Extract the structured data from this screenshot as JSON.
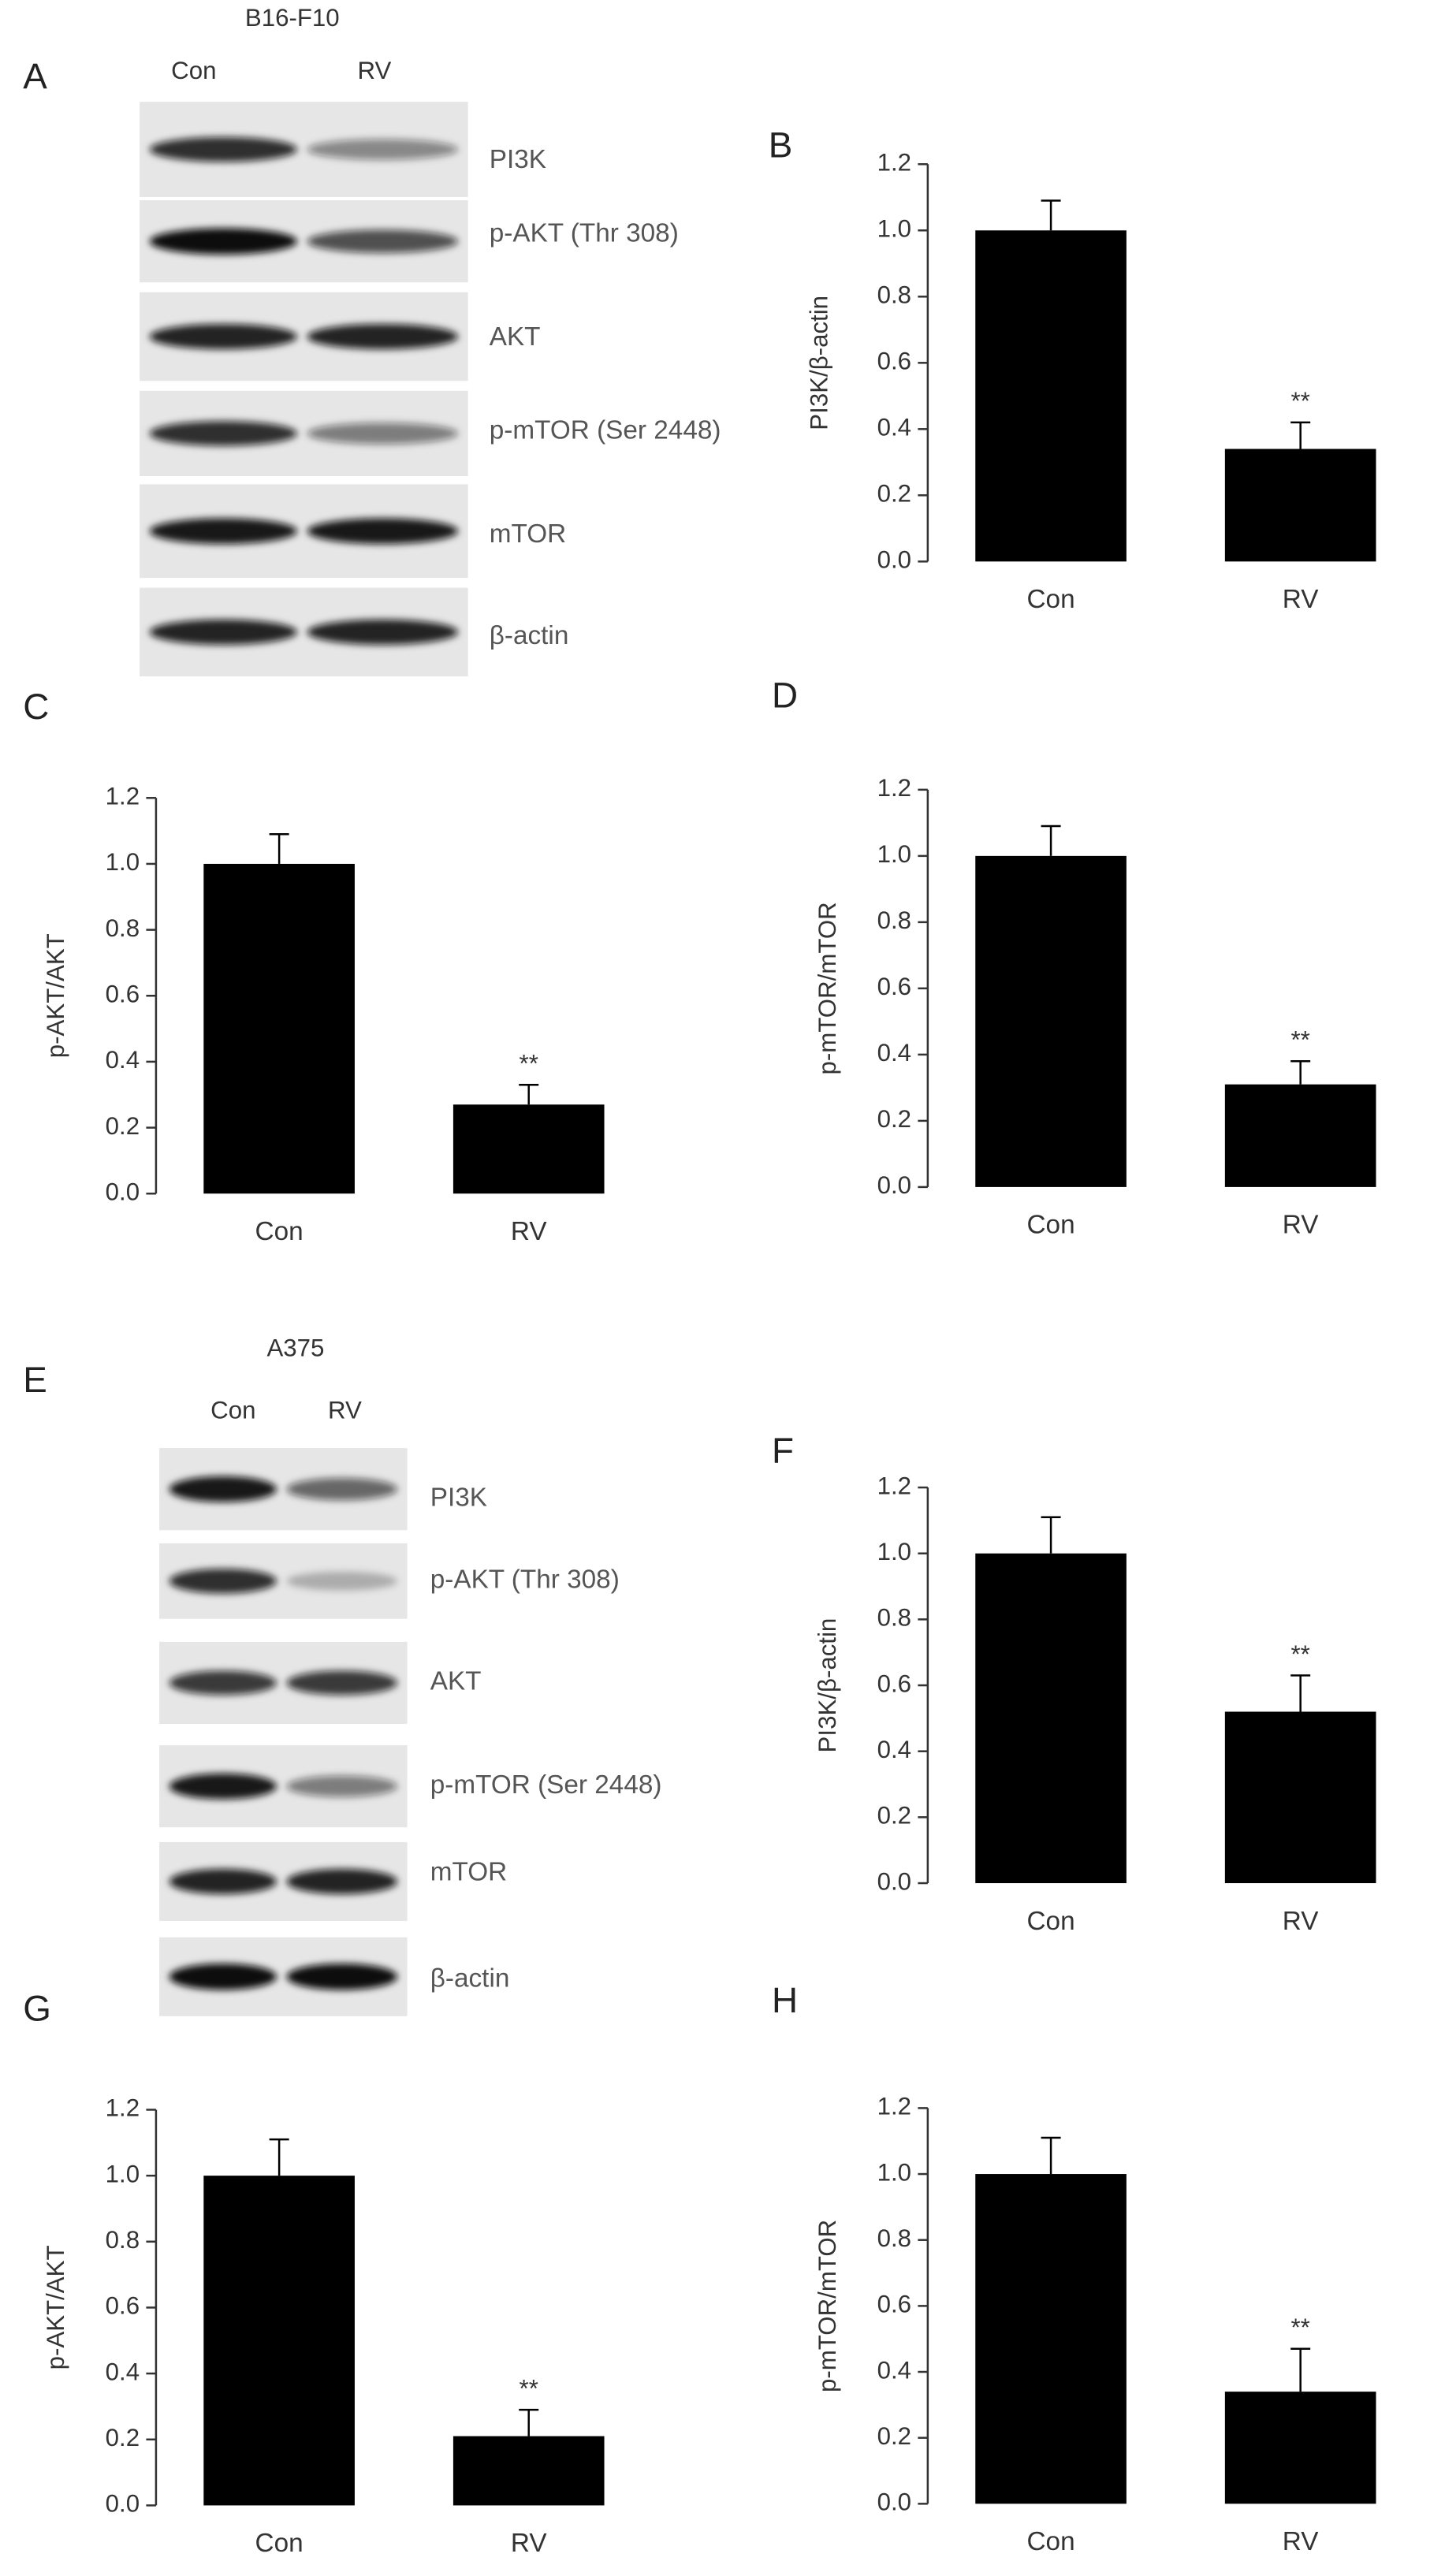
{
  "blots": [
    {
      "panel": "A",
      "cell_line": "B16-F10",
      "lanes": [
        "Con",
        "RV"
      ],
      "bands": [
        "PI3K",
        "p-AKT (Thr 308)",
        "AKT",
        "p-mTOR (Ser 2448)",
        "mTOR",
        "β-actin"
      ]
    },
    {
      "panel": "E",
      "cell_line": "A375",
      "lanes": [
        "Con",
        "RV"
      ],
      "bands": [
        "PI3K",
        "p-AKT (Thr 308)",
        "AKT",
        "p-mTOR (Ser 2448)",
        "mTOR",
        "β-actin"
      ]
    }
  ],
  "chart_data": [
    {
      "type": "bar",
      "panel": "B",
      "ylabel": "PI3K/β-actin",
      "categories": [
        "Con",
        "RV"
      ],
      "values": [
        1.0,
        0.34
      ],
      "errors": [
        0.09,
        0.08
      ],
      "color": "#000000",
      "ylim": [
        0,
        1.2
      ],
      "yticks": [
        {
          "value": 0,
          "label": "0.0"
        },
        0.2,
        0.4,
        0.6,
        0.8,
        {
          "value": 1,
          "label": "1.0"
        },
        1.2
      ],
      "annotations": [
        {
          "x": "RV",
          "text": "**"
        }
      ]
    },
    {
      "type": "bar",
      "panel": "C",
      "ylabel": "p-AKT/AKT",
      "categories": [
        "Con",
        "RV"
      ],
      "values": [
        1.0,
        0.27
      ],
      "errors": [
        0.09,
        0.06
      ],
      "color": "#000000",
      "ylim": [
        0,
        1.2
      ],
      "yticks": [
        {
          "value": 0,
          "label": "0.0"
        },
        0.2,
        0.4,
        0.6,
        0.8,
        {
          "value": 1,
          "label": "1.0"
        },
        1.2
      ],
      "annotations": [
        {
          "x": "RV",
          "text": "**"
        }
      ]
    },
    {
      "type": "bar",
      "panel": "D",
      "ylabel": "p-mTOR/mTOR",
      "categories": [
        "Con",
        "RV"
      ],
      "values": [
        1.0,
        0.31
      ],
      "errors": [
        0.09,
        0.07
      ],
      "color": "#000000",
      "ylim": [
        0,
        1.2
      ],
      "yticks": [
        {
          "value": 0,
          "label": "0.0"
        },
        0.2,
        0.4,
        0.6,
        0.8,
        {
          "value": 1,
          "label": "1.0"
        },
        1.2
      ],
      "annotations": [
        {
          "x": "RV",
          "text": "**"
        }
      ]
    },
    {
      "type": "bar",
      "panel": "F",
      "ylabel": "PI3K/β-actin",
      "categories": [
        "Con",
        "RV"
      ],
      "values": [
        1.0,
        0.52
      ],
      "errors": [
        0.11,
        0.11
      ],
      "color": "#000000",
      "ylim": [
        0,
        1.2
      ],
      "yticks": [
        {
          "value": 0,
          "label": "0.0"
        },
        0.2,
        0.4,
        0.6,
        0.8,
        {
          "value": 1,
          "label": "1.0"
        },
        1.2
      ],
      "annotations": [
        {
          "x": "RV",
          "text": "**"
        }
      ]
    },
    {
      "type": "bar",
      "panel": "G",
      "ylabel": "p-AKT/AKT",
      "categories": [
        "Con",
        "RV"
      ],
      "values": [
        1.0,
        0.21
      ],
      "errors": [
        0.11,
        0.08
      ],
      "color": "#000000",
      "ylim": [
        0,
        1.2
      ],
      "yticks": [
        {
          "value": 0,
          "label": "0.0"
        },
        0.2,
        0.4,
        0.6,
        0.8,
        {
          "value": 1,
          "label": "1.0"
        },
        1.2
      ],
      "annotations": [
        {
          "x": "RV",
          "text": "**"
        }
      ]
    },
    {
      "type": "bar",
      "panel": "H",
      "ylabel": "p-mTOR/mTOR",
      "categories": [
        "Con",
        "RV"
      ],
      "values": [
        1.0,
        0.34
      ],
      "errors": [
        0.11,
        0.13
      ],
      "color": "#000000",
      "ylim": [
        0,
        1.2
      ],
      "yticks": [
        {
          "value": 0,
          "label": "0.0"
        },
        0.2,
        0.4,
        0.6,
        0.8,
        {
          "value": 1,
          "label": "1.0"
        },
        1.2
      ],
      "annotations": [
        {
          "x": "RV",
          "text": "**"
        }
      ]
    }
  ]
}
